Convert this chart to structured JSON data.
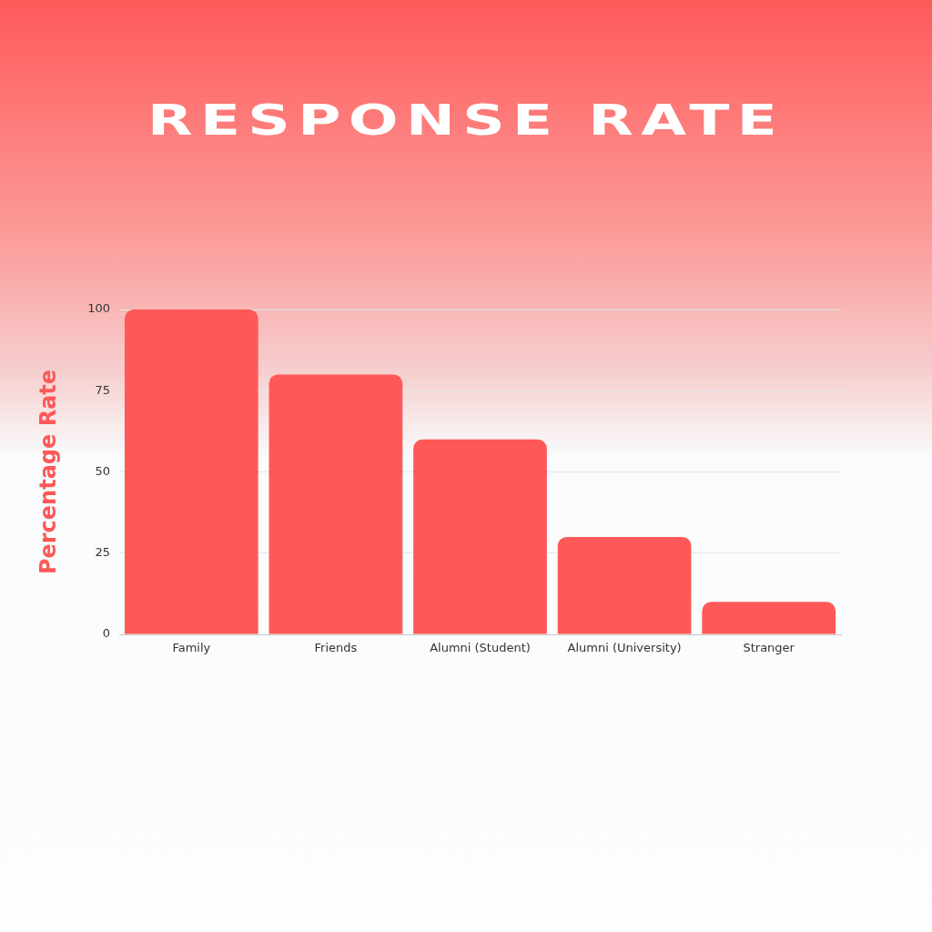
{
  "chart_data": {
    "type": "bar",
    "title": "RESPONSE RATE",
    "ylabel": "Percentage Rate",
    "categories": [
      "Family",
      "Friends",
      "Alumni (Student)",
      "Alumni (University)",
      "Stranger"
    ],
    "values": [
      100,
      80,
      60,
      30,
      10
    ],
    "color": "#ff5858",
    "ylim": [
      0,
      100
    ],
    "yticks": [
      0,
      25,
      50,
      75,
      100
    ],
    "grid": "y"
  }
}
